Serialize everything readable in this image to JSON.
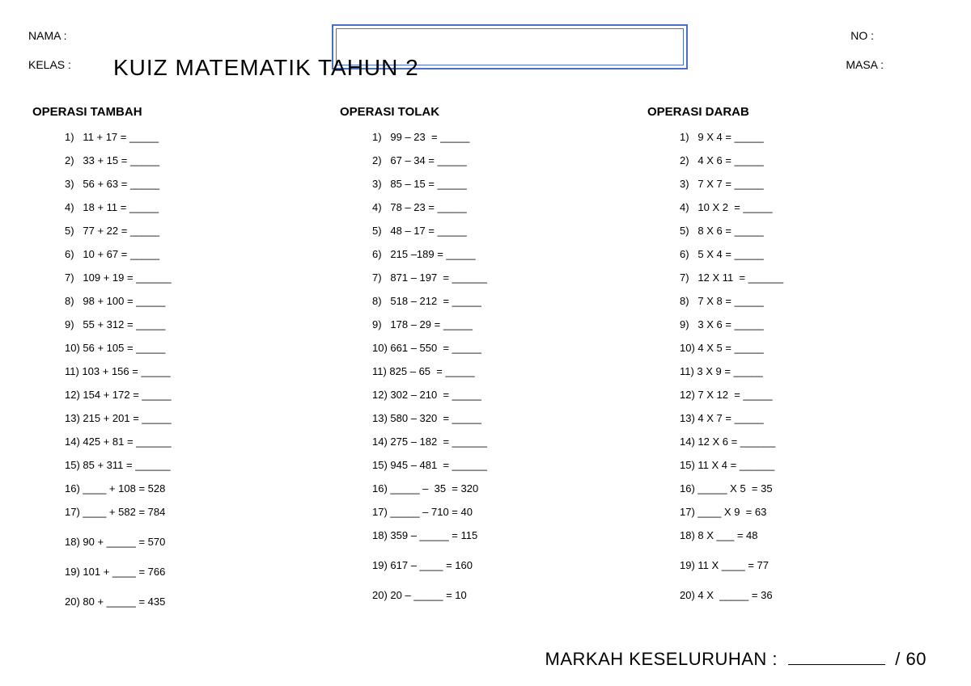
{
  "header": {
    "nama": "NAMA :",
    "kelas": "KELAS :",
    "no": "NO :",
    "masa": "MASA :",
    "title": "KUIZ MATEMATIK TAHUN 2"
  },
  "columns": [
    {
      "title": "OPERASI TAMBAH",
      "items": [
        "1)   11 + 17 = _____",
        "2)   33 + 15 = _____",
        "3)   56 + 63 = _____",
        "4)   18 + 11 = _____",
        "5)   77 + 22 = _____",
        "6)   10 + 67 = _____",
        "7)   109 + 19 = ______",
        "8)   98 + 100 = _____",
        "9)   55 + 312 = _____",
        "10) 56 + 105 = _____",
        "11) 103 + 156 = _____",
        "12) 154 + 172 = _____",
        "13) 215 + 201 = _____",
        "14) 425 + 81 = ______",
        "15) 85 + 311 = ______",
        "16) ____ + 108 = 528",
        "17) ____ + 582 = 784",
        "18) 90 + _____ = 570",
        "19) 101 + ____ = 766",
        "20) 80 + _____ = 435"
      ],
      "gaps": [
        16,
        17,
        18,
        19
      ]
    },
    {
      "title": "OPERASI TOLAK",
      "items": [
        "1)   99 – 23  = _____",
        "2)   67 – 34 = _____",
        "3)   85 – 15 = _____",
        "4)   78 – 23 = _____",
        "5)   48 – 17 = _____",
        "6)   215 –189 = _____",
        "7)   871 – 197  = ______",
        "8)   518 – 212  = _____",
        "9)   178 – 29 = _____",
        "10) 661 – 550  = _____",
        "11) 825 – 65  = _____",
        "12) 302 – 210  = _____",
        "13) 580 – 320  = _____",
        "14) 275 – 182  = ______",
        "15) 945 – 481  = ______",
        "16) _____ –  35  = 320",
        "17) _____ – 710 = 40",
        "18) 359 – _____ = 115",
        "19) 617 – ____ = 160",
        "20) 20 – _____ = 10"
      ],
      "gaps": [
        17,
        18,
        19
      ]
    },
    {
      "title": "OPERASI DARAB",
      "items": [
        "1)   9 X 4 = _____",
        "2)   4 X 6 = _____",
        "3)   7 X 7 = _____",
        "4)   10 X 2  = _____",
        "5)   8 X 6 = _____",
        "6)   5 X 4 = _____",
        "7)   12 X 11  = ______",
        "8)   7 X 8 = _____",
        "9)   3 X 6 = _____",
        "10) 4 X 5 = _____",
        "11) 3 X 9 = _____",
        "12) 7 X 12  = _____",
        "13) 4 X 7 = _____",
        "14) 12 X 6 = ______",
        "15) 11 X 4 = ______",
        "16) _____ X 5  = 35",
        "17) ____ X 9  = 63",
        "18) 8 X ___ = 48",
        "19) 11 X ____ = 77",
        "20) 4 X  _____ = 36"
      ],
      "gaps": [
        17,
        18,
        19
      ]
    }
  ],
  "total": {
    "label": "MARKAH KESELURUHAN :",
    "suffix": "/ 60"
  }
}
